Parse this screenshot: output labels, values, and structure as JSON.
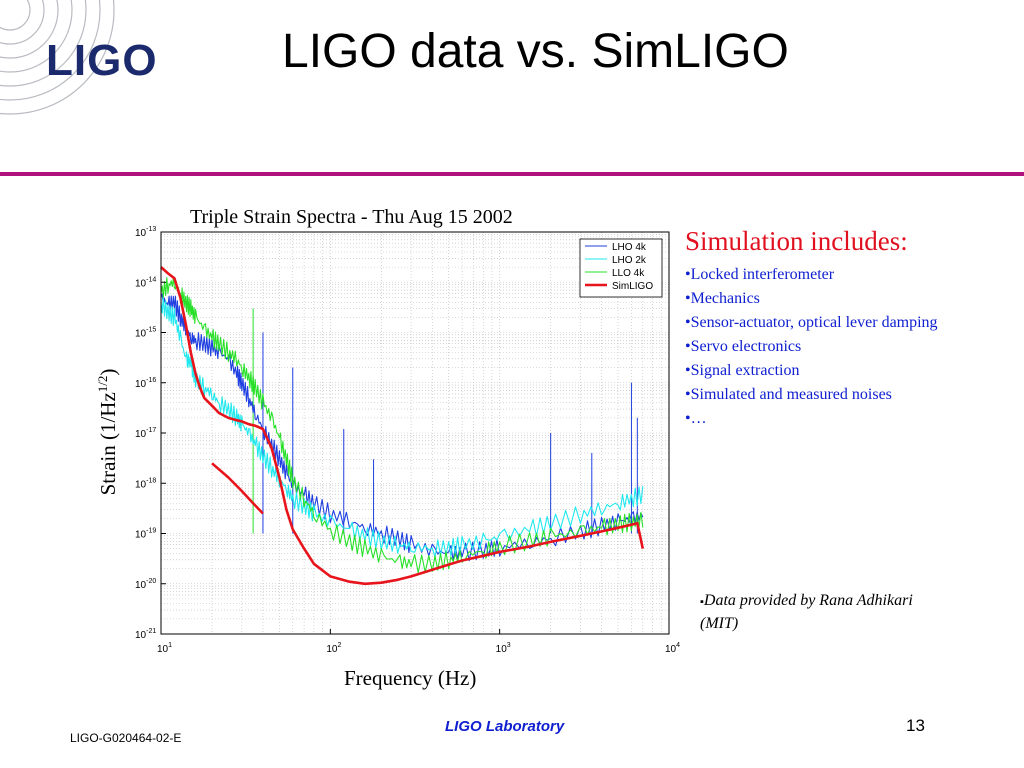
{
  "logo": {
    "text": "LIGO"
  },
  "slide": {
    "title": "LIGO data vs. SimLIGO"
  },
  "sidebar": {
    "heading": "Simulation includes:",
    "items": [
      "•Locked interferometer",
      "•Mechanics",
      "•Sensor-actuator, optical lever damping",
      "•Servo electronics",
      "•Signal extraction",
      "•Simulated and measured noises",
      "•…"
    ]
  },
  "credit": {
    "bullet": "▪",
    "text": "Data provided by Rana Adhikari (MIT)"
  },
  "footer": {
    "doc_id": "LIGO-G020464-02-E",
    "lab": "LIGO Laboratory",
    "page": "13"
  },
  "colors": {
    "accent_rule": "#b0127d",
    "heading_red": "#e0101f",
    "link_blue": "#1020d0"
  },
  "chart_data": {
    "type": "line",
    "title": "Triple Strain Spectra - Thu Aug 15 2002",
    "xlabel": "Frequency (Hz)",
    "ylabel": "Strain (1/Hz^1/2)",
    "ylabel_base": "Strain (1/Hz",
    "ylabel_sup": "1/2",
    "ylabel_end": ")",
    "x_scale": "log",
    "y_scale": "log",
    "xlim": [
      10,
      10000
    ],
    "ylim": [
      1e-21,
      1e-13
    ],
    "xticks": [
      {
        "base": "10",
        "exp": "1"
      },
      {
        "base": "10",
        "exp": "2"
      },
      {
        "base": "10",
        "exp": "3"
      },
      {
        "base": "10",
        "exp": "4"
      }
    ],
    "yticks": [
      {
        "base": "10",
        "exp": "-13"
      },
      {
        "base": "10",
        "exp": "-14"
      },
      {
        "base": "10",
        "exp": "-15"
      },
      {
        "base": "10",
        "exp": "-16"
      },
      {
        "base": "10",
        "exp": "-17"
      },
      {
        "base": "10",
        "exp": "-18"
      },
      {
        "base": "10",
        "exp": "-19"
      },
      {
        "base": "10",
        "exp": "-20"
      },
      {
        "base": "10",
        "exp": "-21"
      }
    ],
    "grid": true,
    "legend_position": "top-right",
    "series": [
      {
        "name": "LHO 4k",
        "color": "#1f3fe0",
        "width": 1.1,
        "x": [
          10,
          11,
          12,
          13,
          14,
          15,
          16,
          18,
          20,
          22,
          25,
          28,
          30,
          33,
          36,
          40,
          45,
          50,
          55,
          60,
          70,
          80,
          100,
          130,
          160,
          200,
          250,
          300,
          400,
          500,
          600,
          800,
          1000,
          1500,
          2000,
          3000,
          4000,
          5000,
          6000,
          7000
        ],
        "y": [
          5e-15,
          3.5e-15,
          4e-15,
          2e-15,
          1.3e-15,
          8e-16,
          7e-16,
          6e-16,
          5e-16,
          4e-16,
          3e-16,
          1.5e-16,
          1e-16,
          5e-17,
          2.5e-17,
          1.2e-17,
          6e-18,
          3e-18,
          1.6e-18,
          9e-19,
          6e-19,
          4e-19,
          2.5e-19,
          1.8e-19,
          1.3e-19,
          1e-19,
          8e-20,
          6e-20,
          4.5e-20,
          4e-20,
          4.2e-20,
          4.7e-20,
          5.3e-20,
          6.5e-20,
          8e-20,
          1.1e-19,
          1.4e-19,
          1.7e-19,
          2e-19,
          2.3e-19
        ]
      },
      {
        "name": "LHO 2k",
        "color": "#1fe8ee",
        "width": 1.1,
        "x": [
          10,
          11,
          12,
          13,
          14,
          15,
          16,
          18,
          20,
          22,
          25,
          28,
          30,
          33,
          36,
          40,
          45,
          50,
          55,
          60,
          70,
          80,
          100,
          130,
          160,
          200,
          250,
          300,
          400,
          500,
          600,
          800,
          1000,
          1500,
          2000,
          3000,
          4000,
          5000,
          6000,
          7000
        ],
        "y": [
          4e-15,
          2.5e-15,
          2e-15,
          8e-16,
          3e-16,
          2.5e-16,
          1.2e-16,
          8e-17,
          6e-17,
          4e-17,
          3e-17,
          2e-17,
          1.5e-17,
          1e-17,
          6e-18,
          3.5e-18,
          2e-18,
          1.2e-18,
          8e-19,
          5e-19,
          3.5e-19,
          2.5e-19,
          1.7e-19,
          1.2e-19,
          9e-20,
          7e-20,
          6e-20,
          5.5e-20,
          5e-20,
          5.2e-20,
          5.8e-20,
          7e-20,
          8.5e-20,
          1.2e-19,
          1.6e-19,
          2.4e-19,
          3.2e-19,
          4e-19,
          5e-19,
          6e-19
        ]
      },
      {
        "name": "LLO 4k",
        "color": "#28e028",
        "width": 1.1,
        "x": [
          10,
          11,
          12,
          13,
          14,
          15,
          16,
          18,
          20,
          22,
          25,
          28,
          30,
          33,
          36,
          40,
          45,
          50,
          55,
          60,
          70,
          80,
          100,
          130,
          160,
          200,
          250,
          300,
          400,
          500,
          600,
          800,
          1000,
          1500,
          2000,
          3000,
          4000,
          5000,
          6000,
          7000
        ],
        "y": [
          6e-15,
          9e-15,
          1e-14,
          6e-15,
          4e-15,
          3e-15,
          2e-15,
          1.2e-15,
          8e-16,
          6e-16,
          4e-16,
          3e-16,
          2e-16,
          1.3e-16,
          8e-17,
          4e-17,
          2e-17,
          8e-18,
          3e-18,
          1.2e-18,
          5e-19,
          2.5e-19,
          1.2e-19,
          7e-20,
          5e-20,
          3.5e-20,
          2.8e-20,
          2.5e-20,
          2.5e-20,
          3e-20,
          3.6e-20,
          4.5e-20,
          5.5e-20,
          7e-20,
          8.5e-20,
          1.1e-19,
          1.3e-19,
          1.5e-19,
          1.7e-19,
          1.9e-19
        ]
      },
      {
        "name": "SimLIGO",
        "color": "#e8141c",
        "width": 2.6,
        "x": [
          10,
          11,
          12,
          13,
          14,
          15,
          16,
          17,
          18,
          20,
          22,
          25,
          28,
          30,
          33,
          36,
          40,
          45,
          50,
          55,
          60,
          70,
          80,
          100,
          130,
          160,
          200,
          250,
          300,
          400,
          500,
          600,
          800,
          1000,
          1500,
          2000,
          3000,
          4000,
          5000,
          6000,
          6500,
          7000
        ],
        "y": [
          2e-14,
          1.5e-14,
          1.2e-14,
          5e-15,
          1.5e-15,
          4e-16,
          1.5e-16,
          8e-17,
          5e-17,
          3.5e-17,
          2.5e-17,
          2e-17,
          1.8e-17,
          1.7e-17,
          1.5e-17,
          1.4e-17,
          1.2e-17,
          5e-18,
          1.3e-18,
          3e-19,
          1.2e-19,
          5e-20,
          2.5e-20,
          1.4e-20,
          1.1e-20,
          1e-20,
          1.05e-20,
          1.2e-20,
          1.4e-20,
          1.9e-20,
          2.4e-20,
          2.9e-20,
          3.6e-20,
          4.3e-20,
          5.5e-20,
          6.8e-20,
          9e-20,
          1.1e-19,
          1.3e-19,
          1.5e-19,
          1.6e-19,
          5e-20
        ]
      },
      {
        "name": "",
        "color": "#e8141c",
        "width": 2.6,
        "x": [
          20,
          25,
          30,
          35,
          40
        ],
        "y": [
          2.5e-18,
          1.3e-18,
          7e-19,
          4e-19,
          2.5e-19
        ]
      }
    ],
    "spikes": [
      {
        "x": 60,
        "y_top": 2e-16,
        "color": "#1f3fe0"
      },
      {
        "x": 120,
        "y_top": 1.2e-17,
        "color": "#1f3fe0"
      },
      {
        "x": 180,
        "y_top": 3e-18,
        "color": "#1f3fe0"
      },
      {
        "x": 2000,
        "y_top": 1e-17,
        "color": "#1f3fe0"
      },
      {
        "x": 3500,
        "y_top": 4e-18,
        "color": "#1f3fe0"
      },
      {
        "x": 6000,
        "y_top": 1e-16,
        "color": "#1f3fe0"
      },
      {
        "x": 6500,
        "y_top": 2e-17,
        "color": "#1f3fe0"
      },
      {
        "x": 35,
        "y_top": 3e-15,
        "color": "#28e028"
      },
      {
        "x": 40,
        "y_top": 1e-15,
        "color": "#1f3fe0"
      }
    ]
  }
}
